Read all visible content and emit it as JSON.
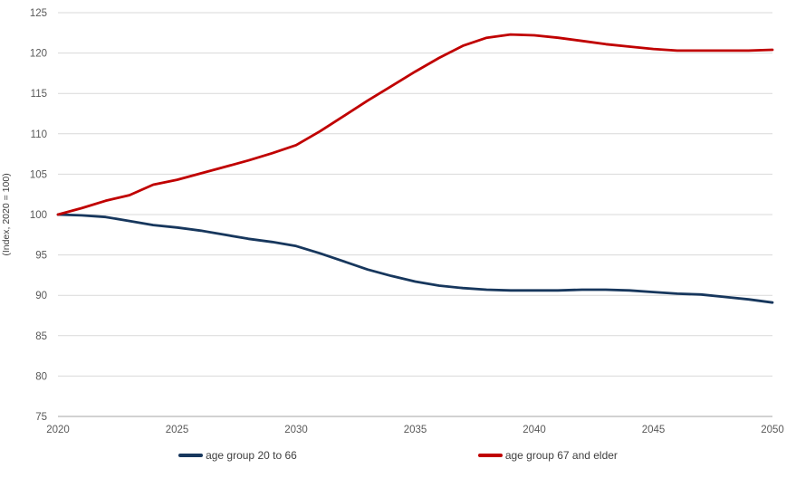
{
  "chart_data": {
    "type": "line",
    "title": "",
    "xlabel": "",
    "ylabel": "(Index, 2020 = 100)",
    "xlim": [
      2020,
      2050
    ],
    "ylim": [
      75,
      125
    ],
    "x_ticks": [
      2020,
      2025,
      2030,
      2035,
      2040,
      2045,
      2050
    ],
    "y_ticks": [
      75,
      80,
      85,
      90,
      95,
      100,
      105,
      110,
      115,
      120,
      125
    ],
    "grid": "horizontal",
    "legend_position": "bottom",
    "x": [
      2020,
      2021,
      2022,
      2023,
      2024,
      2025,
      2026,
      2027,
      2028,
      2029,
      2030,
      2031,
      2032,
      2033,
      2034,
      2035,
      2036,
      2037,
      2038,
      2039,
      2040,
      2041,
      2042,
      2043,
      2044,
      2045,
      2046,
      2047,
      2048,
      2049,
      2050
    ],
    "series": [
      {
        "name": "age group 20 to 66",
        "color": "#17375d",
        "values": [
          100,
          99.9,
          99.7,
          99.2,
          98.7,
          98.4,
          98.0,
          97.5,
          97.0,
          96.6,
          96.1,
          95.2,
          94.2,
          93.2,
          92.4,
          91.7,
          91.2,
          90.9,
          90.7,
          90.6,
          90.6,
          90.6,
          90.7,
          90.7,
          90.6,
          90.4,
          90.2,
          90.1,
          89.8,
          89.5,
          89.1
        ]
      },
      {
        "name": "age group 67 and elder",
        "color": "#c00000",
        "values": [
          100,
          100.8,
          101.7,
          102.4,
          103.7,
          104.3,
          105.1,
          105.9,
          106.7,
          107.6,
          108.6,
          110.3,
          112.2,
          114.1,
          115.9,
          117.7,
          119.4,
          120.9,
          121.9,
          122.3,
          122.2,
          121.9,
          121.5,
          121.1,
          120.8,
          120.5,
          120.3,
          120.3,
          120.3,
          120.3,
          120.4
        ]
      }
    ],
    "colors": {
      "gridline": "#d9d9d9",
      "axis_line": "#a6a6a6",
      "tick_label": "#595959",
      "axis_title": "#404040"
    }
  }
}
